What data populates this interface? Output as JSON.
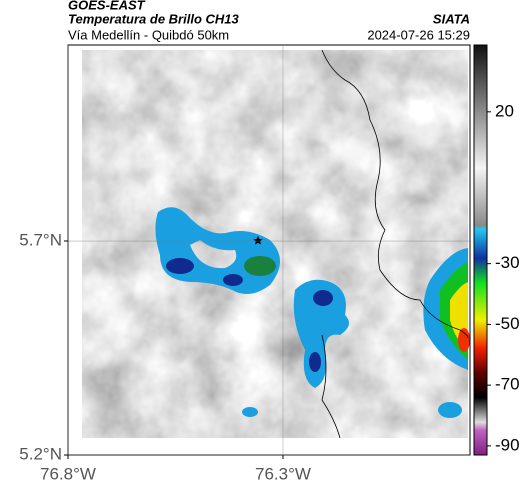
{
  "header": {
    "source": "GOES-EAST",
    "product": "Temperatura de Brillo CH13",
    "route": "Vía Medellín - Quibdó 50km",
    "agency": "SIATA",
    "datetime": "2024-07-26 15:29"
  },
  "map": {
    "xlim": [
      -76.8,
      -75.865
    ],
    "ylim": [
      5.2,
      6.158
    ],
    "xticks": [
      {
        "value": -76.8,
        "label": "76.8°W"
      },
      {
        "value": -76.3,
        "label": "76.3°W"
      }
    ],
    "yticks": [
      {
        "value": 5.7,
        "label": "5.7°N"
      },
      {
        "value": 5.2,
        "label": "5.2°N"
      }
    ],
    "grid": true
  },
  "colorbar": {
    "lim": [
      -93,
      42
    ],
    "ticks": [
      20,
      -30,
      -50,
      -70,
      -90
    ]
  }
}
